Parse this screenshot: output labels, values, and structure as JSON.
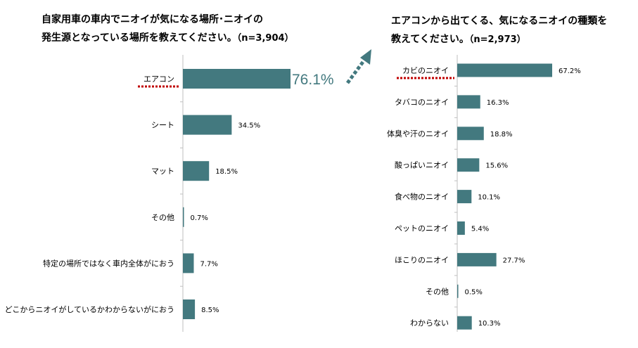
{
  "colors": {
    "bar": "#43797F",
    "axis": "#BFBFBF",
    "highlight_dots": "#C00000",
    "arrow": "#43797F",
    "callout_text": "#43797F"
  },
  "chart_data": [
    {
      "type": "bar",
      "orientation": "horizontal",
      "title_line1": "自家用車の車内でニオイが気になる場所･ニオイの",
      "title_line2": "発生源となっている場所を教えてください。",
      "sample": "（n=3,904）",
      "categories": [
        "エアコン",
        "シート",
        "マット",
        "その他",
        "特定の場所ではなく車内全体がにおう",
        "どこからニオイがしているかわからないがにおう"
      ],
      "values": [
        76.1,
        34.5,
        18.5,
        0.7,
        7.7,
        8.5
      ],
      "value_labels": [
        "76.1%",
        "34.5%",
        "18.5%",
        "0.7%",
        "7.7%",
        "8.5%"
      ],
      "highlight_category": "エアコン",
      "unit": "%"
    },
    {
      "type": "bar",
      "orientation": "horizontal",
      "title_line1": "エアコンから出てくる、気になるニオイの種類を",
      "title_line2": "教えてください。",
      "sample": "（n=2,973）",
      "categories": [
        "カビのニオイ",
        "タバコのニオイ",
        "体臭や汗のニオイ",
        "酸っぱいニオイ",
        "食べ物のニオイ",
        "ペットのニオイ",
        "ほこりのニオイ",
        "その他",
        "わからない"
      ],
      "values": [
        67.2,
        16.3,
        18.8,
        15.6,
        10.1,
        5.4,
        27.7,
        0.5,
        10.3
      ],
      "value_labels": [
        "67.2%",
        "16.3%",
        "18.8%",
        "15.6%",
        "10.1%",
        "5.4%",
        "27.7%",
        "0.5%",
        "10.3%"
      ],
      "highlight_category": "カビのニオイ",
      "unit": "%"
    }
  ]
}
